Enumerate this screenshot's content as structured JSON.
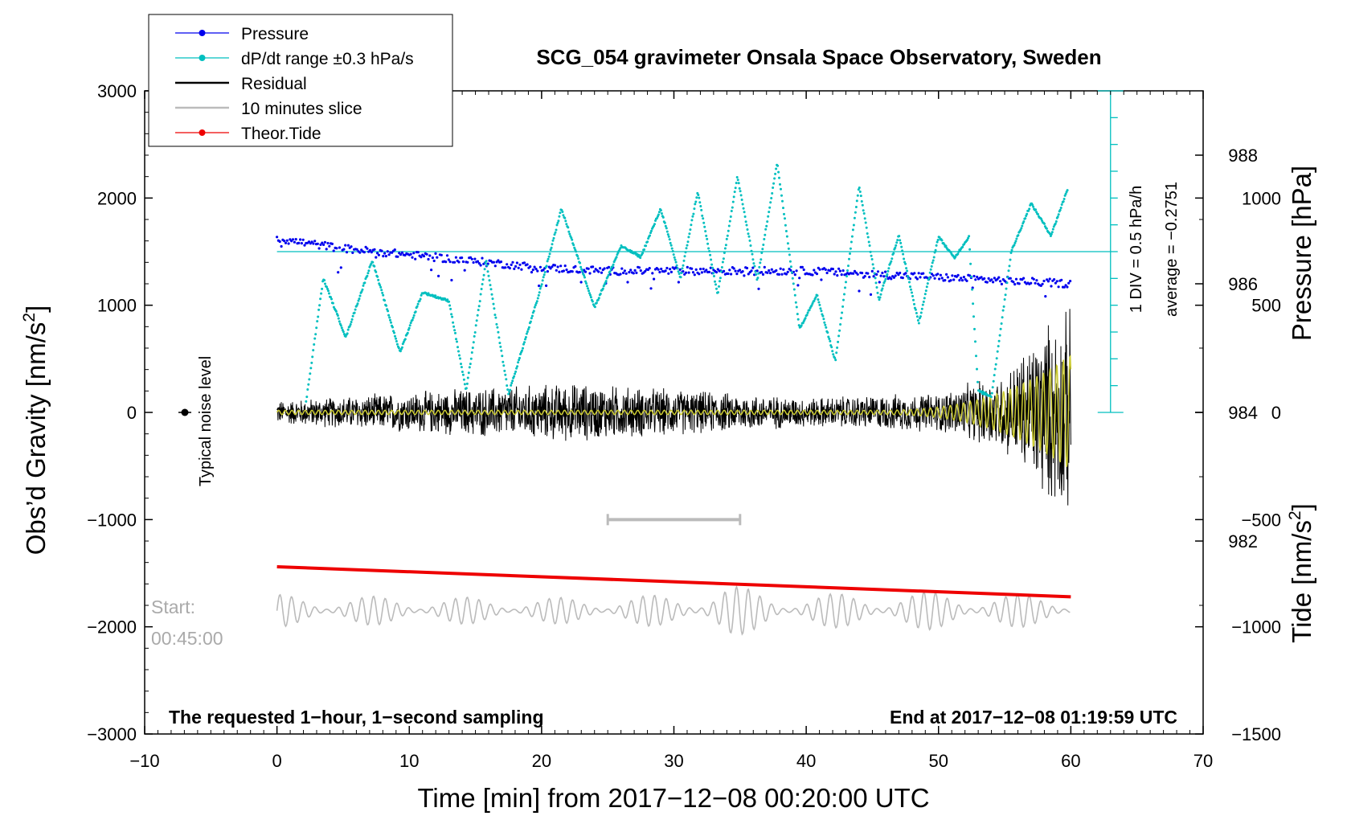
{
  "chart_data": {
    "type": "line",
    "title": "SCG_054 gravimeter Onsala Space Observatory, Sweden",
    "xlabel": "Time [min] from 2017−12−08 00:20:00 UTC",
    "ylabel_left_base": "Obs’d Gravity [nm/s",
    "ylabel_left_sup": "2",
    "ylabel_left_end": "]",
    "ylabel_pressure": "Pressure [hPa]",
    "ylabel_tide_base": "Tide [nm/s",
    "ylabel_tide_sup": "2",
    "ylabel_tide_end": "]",
    "xlim": [
      -10,
      70
    ],
    "ylim": [
      -3000,
      3000
    ],
    "pressure_lim": [
      979,
      989
    ],
    "tide_lim": [
      -1500,
      1500
    ],
    "x_ticks": [
      -10,
      0,
      10,
      20,
      30,
      40,
      50,
      60,
      70
    ],
    "x_tick_labels": [
      "−10",
      "0",
      "10",
      "20",
      "30",
      "40",
      "50",
      "60",
      "70"
    ],
    "y_ticks": [
      3000,
      2000,
      1000,
      0,
      -1000,
      -2000,
      -3000
    ],
    "y_tick_labels": [
      "3000",
      "2000",
      "1000",
      "0",
      "−1000",
      "−2000",
      "−3000"
    ],
    "pressure_ticks": [
      988,
      986,
      984,
      982
    ],
    "pressure_tick_labels": [
      "988",
      "986",
      "984",
      "982"
    ],
    "tide_ticks": [
      1000,
      500,
      0,
      -500,
      -1000,
      -1500
    ],
    "tide_tick_labels": [
      "1000",
      "500",
      "0",
      "−500",
      "−1000",
      "−1500"
    ],
    "legend": {
      "placement": "top-left",
      "entries": [
        {
          "label": "Pressure",
          "color": "#0000ee",
          "marker": true,
          "line_width": 1
        },
        {
          "label": "dP/dt range ±0.3 hPa/s",
          "color": "#00bfbf",
          "marker": true,
          "line_width": 1
        },
        {
          "label": "Residual",
          "color": "#000000",
          "marker": false,
          "line_width": 2
        },
        {
          "label": "10 minutes slice",
          "color": "#bbbbbb",
          "marker": false,
          "line_width": 2
        },
        {
          "label": "Theor.Tide",
          "color": "#ee0000",
          "marker": true,
          "line_width": 1
        }
      ]
    },
    "annotations": {
      "noise_label": "Typical noise level",
      "noise_marker": {
        "x": -7,
        "y": 0
      },
      "start_label": "Start:",
      "start_time": "00:45:00",
      "bottom_left": "The requested 1−hour, 1−second sampling",
      "bottom_right": "End at 2017−12−08 01:19:59 UTC",
      "scale_text_1": "1 DIV = 0.5 hPa/h",
      "scale_text_2": "average = −0.2751",
      "dpdt_average_line_y": 1500,
      "dpdt_scale_bar": {
        "x": 63,
        "y_top": 3000,
        "y_bottom": 0,
        "divisions": 12
      },
      "slice_bracket": {
        "x_start": 25,
        "x_end": 35,
        "y": -1000
      }
    },
    "series": [
      {
        "name": "Pressure",
        "color": "#0000ee",
        "axis": "pressure",
        "x": [
          0,
          5,
          10,
          15,
          20,
          25,
          30,
          35,
          40,
          45,
          50,
          55,
          60
        ],
        "values": [
          986.7,
          986.55,
          986.45,
          986.35,
          986.25,
          986.2,
          986.2,
          986.2,
          986.2,
          986.15,
          986.1,
          986.05,
          986.0
        ]
      },
      {
        "name": "dP/dt range ±0.3 hPa/s",
        "color": "#00bfbf",
        "axis": "left",
        "x": [
          2.2,
          3.5,
          5.2,
          7.2,
          9.3,
          11,
          13,
          14.3,
          15.8,
          17.5,
          19.8,
          21.5,
          24,
          26,
          27.5,
          29,
          30.5,
          31.8,
          33.3,
          34.8,
          36.3,
          37.8,
          39.5,
          40.8,
          42.2,
          44,
          45.5,
          47,
          48.5,
          50,
          51.2,
          52.3,
          53,
          54,
          55.5,
          57,
          58.5,
          59.8
        ],
        "values": [
          100,
          1250,
          700,
          1420,
          560,
          1120,
          1040,
          200,
          1420,
          170,
          1100,
          1900,
          980,
          1550,
          1450,
          1900,
          1250,
          2060,
          1100,
          2200,
          1230,
          2330,
          780,
          1100,
          480,
          2120,
          1050,
          1650,
          830,
          1640,
          1440,
          1640,
          200,
          150,
          1500,
          1950,
          1650,
          2100
        ]
      },
      {
        "name": "Residual",
        "color": "#000000",
        "axis": "left",
        "x": [
          0,
          15,
          22.5,
          40,
          50,
          55,
          58,
          60
        ],
        "envelope": [
          120,
          250,
          300,
          150,
          200,
          400,
          900,
          1050
        ]
      },
      {
        "name": "10 minutes slice",
        "color": "#bbbbbb",
        "axis": "left",
        "x": [
          0,
          10,
          20,
          30,
          34,
          38,
          50,
          60
        ],
        "baseline": -1850,
        "envelope": [
          150,
          130,
          120,
          150,
          250,
          150,
          180,
          140
        ]
      },
      {
        "name": "Theor.Tide",
        "color": "#ee0000",
        "axis": "tide",
        "x": [
          0,
          10,
          20,
          30,
          40,
          50,
          60
        ],
        "values": [
          -720,
          -745,
          -770,
          -795,
          -820,
          -840,
          -860
        ]
      }
    ]
  }
}
